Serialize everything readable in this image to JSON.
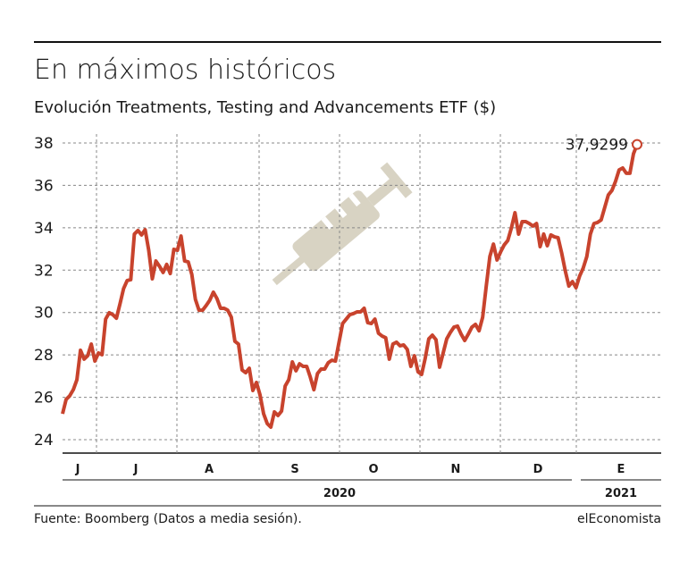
{
  "chart_data": {
    "type": "line",
    "title": "En máximos históricos",
    "subtitle": "Evolución Treatments, Testing and Advancements ETF ($)",
    "months": [
      "J",
      "J",
      "A",
      "S",
      "O",
      "N",
      "D",
      "E"
    ],
    "years": [
      "2020",
      "2021"
    ],
    "series": [
      {
        "color": "#c8432d",
        "values": [
          25.22,
          25.9,
          26.07,
          26.36,
          26.83,
          28.22,
          27.8,
          27.96,
          28.51,
          27.71,
          28.09,
          28.01,
          29.69,
          29.99,
          29.9,
          29.73,
          30.41,
          31.13,
          31.51,
          31.55,
          33.7,
          33.87,
          33.66,
          33.91,
          32.94,
          31.59,
          32.43,
          32.18,
          31.89,
          32.27,
          31.84,
          32.98,
          32.94,
          33.61,
          32.43,
          32.39,
          31.8,
          30.62,
          30.11,
          30.11,
          30.33,
          30.58,
          30.96,
          30.66,
          30.2,
          30.2,
          30.11,
          29.78,
          28.64,
          28.51,
          27.29,
          27.16,
          27.37,
          26.32,
          26.7,
          26.11,
          25.22,
          24.76,
          24.59,
          25.31,
          25.14,
          25.35,
          26.53,
          26.83,
          27.67,
          27.25,
          27.58,
          27.46,
          27.46,
          26.95,
          26.36,
          27.12,
          27.33,
          27.33,
          27.63,
          27.75,
          27.71,
          28.6,
          29.48,
          29.69,
          29.9,
          29.95,
          30.03,
          30.03,
          30.2,
          29.52,
          29.48,
          29.69,
          29.02,
          28.89,
          28.81,
          27.8,
          28.51,
          28.6,
          28.43,
          28.47,
          28.26,
          27.46,
          27.96,
          27.2,
          27.08,
          27.84,
          28.76,
          28.93,
          28.72,
          27.42,
          28.09,
          28.76,
          29.06,
          29.31,
          29.36,
          28.98,
          28.68,
          28.98,
          29.31,
          29.44,
          29.14,
          29.78,
          31.25,
          32.64,
          33.23,
          32.48,
          32.86,
          33.19,
          33.4,
          33.99,
          34.71,
          33.7,
          34.29,
          34.29,
          34.2,
          34.08,
          34.2,
          33.11,
          33.7,
          33.15,
          33.66,
          33.57,
          33.53,
          32.81,
          31.97,
          31.25,
          31.46,
          31.17,
          31.72,
          32.1,
          32.64,
          33.7,
          34.2,
          34.25,
          34.37,
          34.96,
          35.55,
          35.76,
          36.19,
          36.73,
          36.82,
          36.57,
          36.57,
          37.49,
          37.9299
        ]
      }
    ],
    "annotation": "37,9299",
    "ylim": [
      24,
      38
    ],
    "yticks": [
      24,
      26,
      28,
      30,
      32,
      34,
      36,
      38
    ],
    "grid": true,
    "source": "Fuente: Boomberg (Datos a media sesión).",
    "brand": "elEconomista"
  }
}
